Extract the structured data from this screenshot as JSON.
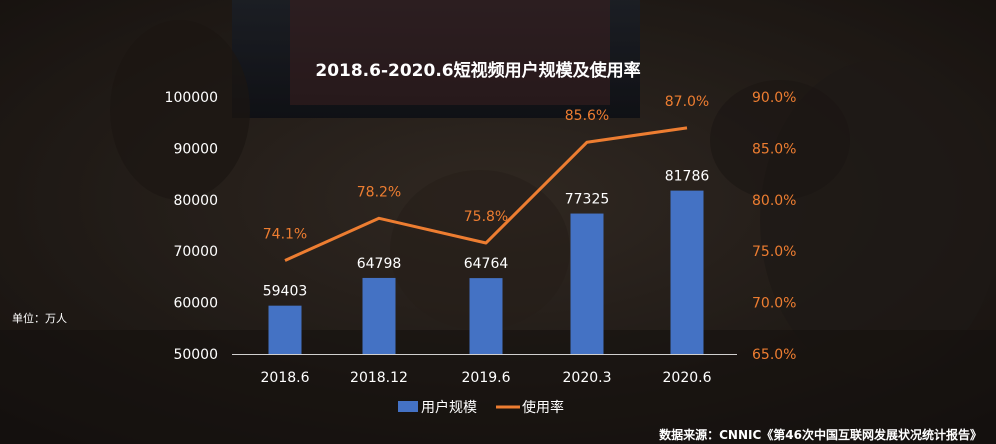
{
  "chart_data": {
    "type": "bar",
    "title": "2018.6-2020.6短视频用户规模及使用率",
    "categories": [
      "2018.6",
      "2018.12",
      "2019.6",
      "2020.3",
      "2020.6"
    ],
    "series": [
      {
        "name": "用户规模",
        "type": "bar",
        "axis": "left",
        "values": [
          59403,
          64798,
          64764,
          77325,
          81786
        ],
        "labels": [
          "59403",
          "64798",
          "64764",
          "77325",
          "81786"
        ],
        "color": "#4472c4"
      },
      {
        "name": "使用率",
        "type": "line",
        "axis": "right",
        "values": [
          74.1,
          78.2,
          75.8,
          85.6,
          87.0
        ],
        "labels": [
          "74.1%",
          "78.2%",
          "75.8%",
          "85.6%",
          "87.0%"
        ],
        "color": "#ed7d31"
      }
    ],
    "y_left": {
      "ylim": [
        50000,
        100000
      ],
      "ticks": [
        50000,
        60000,
        70000,
        80000,
        90000,
        100000
      ],
      "tick_labels": [
        "50000",
        "60000",
        "70000",
        "80000",
        "90000",
        "100000"
      ]
    },
    "y_right": {
      "ylim": [
        65.0,
        90.0
      ],
      "ticks": [
        65,
        70,
        75,
        80,
        85,
        90
      ],
      "tick_labels": [
        "65.0%",
        "70.0%",
        "75.0%",
        "80.0%",
        "85.0%",
        "90.0%"
      ]
    },
    "unit_note": "单位：万人",
    "source_note": "数据来源：CNNIC《第46次中国互联网发展状况统计报告》",
    "legend_position": "bottom",
    "grid": false
  }
}
